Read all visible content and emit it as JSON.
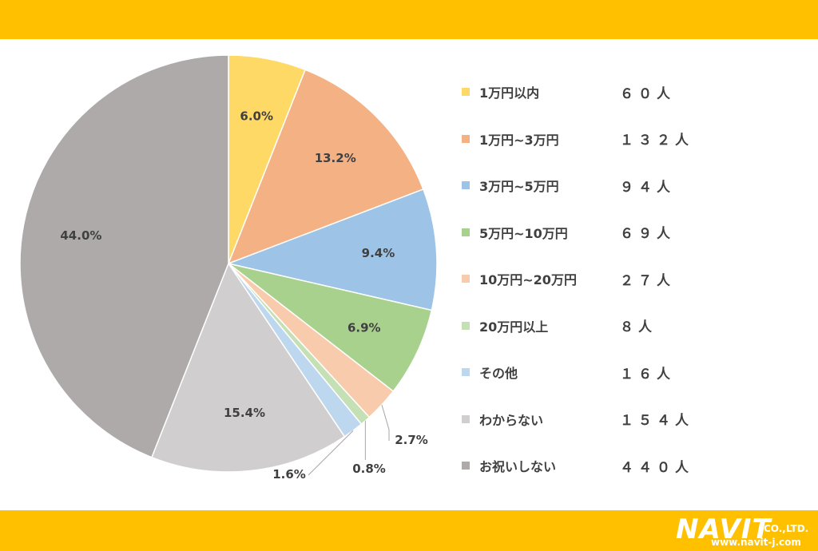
{
  "chart_data": {
    "type": "pie",
    "slices": [
      {
        "label": "1万円以内",
        "percent": 6.0,
        "percent_label": "6.0%",
        "count_label": "６０人",
        "color": "#FFD966"
      },
      {
        "label": "1万円~3万円",
        "percent": 13.2,
        "percent_label": "13.2%",
        "count_label": "１３２人",
        "color": "#F4B183"
      },
      {
        "label": "3万円~5万円",
        "percent": 9.4,
        "percent_label": "9.4%",
        "count_label": "９４人",
        "color": "#9DC3E6"
      },
      {
        "label": "5万円~10万円",
        "percent": 6.9,
        "percent_label": "6.9%",
        "count_label": "６９人",
        "color": "#A9D18E"
      },
      {
        "label": "10万円~20万円",
        "percent": 2.7,
        "percent_label": "2.7%",
        "count_label": "２７人",
        "color": "#F8CBAD"
      },
      {
        "label": "20万円以上",
        "percent": 0.8,
        "percent_label": "0.8%",
        "count_label": "８人",
        "color": "#C5E0B4"
      },
      {
        "label": "その他",
        "percent": 1.6,
        "percent_label": "1.6%",
        "count_label": "１６人",
        "color": "#BDD7EE"
      },
      {
        "label": "わからない",
        "percent": 15.4,
        "percent_label": "15.4%",
        "count_label": "１５４人",
        "color": "#D0CECE"
      },
      {
        "label": "お祝いしない",
        "percent": 44.0,
        "percent_label": "44.0%",
        "count_label": "４４０人",
        "color": "#AEAAAA"
      }
    ],
    "legend_position": "right"
  },
  "branding": {
    "logo_text": "NAVIT",
    "logo_suffix": "CO.,LTD.",
    "url": "www.navit-j.com",
    "band_color": "#FFC000"
  }
}
